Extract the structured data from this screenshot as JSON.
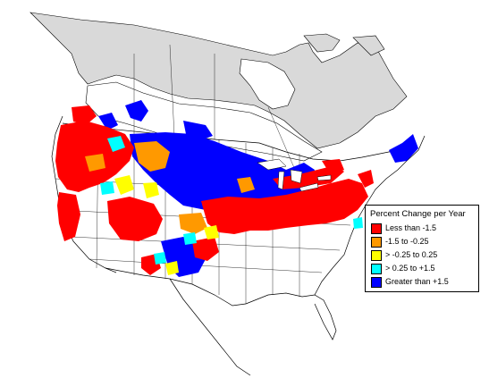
{
  "map": {
    "colors": {
      "background": "#ffffff",
      "land": "#ffffff",
      "unsampled_north": "#d9d9d9",
      "boundary": "#000000"
    }
  },
  "legend": {
    "title": "Percent Change per Year",
    "items": [
      {
        "label": "Less than -1.5",
        "color": "#ff0000"
      },
      {
        "label": "-1.5 to -0.25",
        "color": "#ff9900"
      },
      {
        "label": "> -0.25 to 0.25",
        "color": "#ffff00"
      },
      {
        "label": "> 0.25 to +1.5",
        "color": "#00ffff"
      },
      {
        "label": "Greater than +1.5",
        "color": "#0000ff"
      }
    ]
  }
}
